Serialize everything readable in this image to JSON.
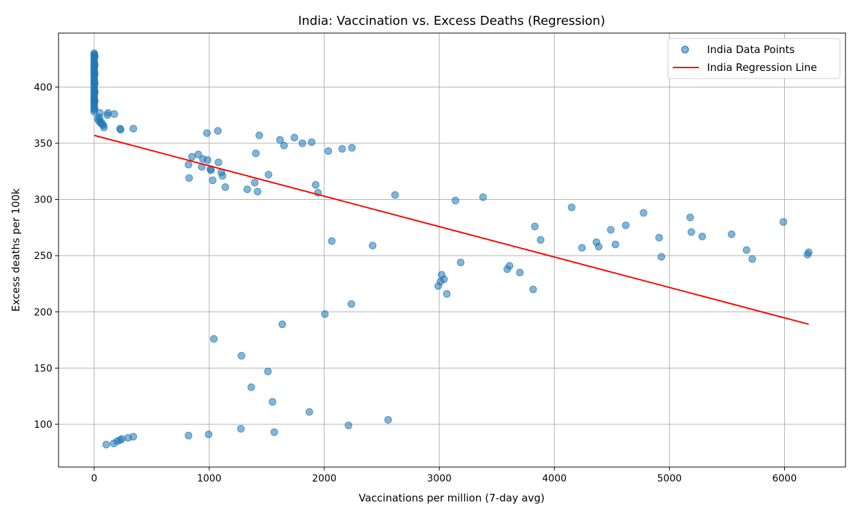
{
  "chart_data": {
    "type": "scatter",
    "title": "India: Vaccination vs. Excess Deaths (Regression)",
    "xlabel": "Vaccinations per million (7-day avg)",
    "ylabel": "Excess deaths per 100k",
    "xlim": [
      -310,
      6530
    ],
    "ylim": [
      62,
      448
    ],
    "xticks": [
      0,
      1000,
      2000,
      3000,
      4000,
      5000,
      6000
    ],
    "xtick_labels": [
      "0",
      "1000",
      "2000",
      "3000",
      "4000",
      "5000",
      "6000"
    ],
    "yticks": [
      100,
      150,
      200,
      250,
      300,
      350,
      400
    ],
    "ytick_labels": [
      "100",
      "150",
      "200",
      "250",
      "300",
      "350",
      "400"
    ],
    "grid": true,
    "legend_position": "top-right",
    "colors": {
      "points": "#1f77b4",
      "line": "#ff0000"
    },
    "series": [
      {
        "name": "India Data Points",
        "kind": "scatter",
        "points": [
          [
            0,
            430
          ],
          [
            0,
            428
          ],
          [
            0,
            426
          ],
          [
            0,
            424
          ],
          [
            0,
            422
          ],
          [
            0,
            420
          ],
          [
            0,
            418
          ],
          [
            0,
            416
          ],
          [
            0,
            414
          ],
          [
            0,
            412
          ],
          [
            0,
            410
          ],
          [
            0,
            408
          ],
          [
            0,
            406
          ],
          [
            0,
            404
          ],
          [
            0,
            402
          ],
          [
            0,
            400
          ],
          [
            0,
            398
          ],
          [
            0,
            396
          ],
          [
            0,
            394
          ],
          [
            0,
            392
          ],
          [
            0,
            390
          ],
          [
            0,
            388
          ],
          [
            0,
            386
          ],
          [
            0,
            384
          ],
          [
            0,
            382
          ],
          [
            0,
            380
          ],
          [
            0,
            378
          ],
          [
            2,
            429
          ],
          [
            2,
            421
          ],
          [
            3,
            413
          ],
          [
            2,
            405
          ],
          [
            3,
            397
          ],
          [
            2,
            389
          ],
          [
            3,
            381
          ],
          [
            5,
            427
          ],
          [
            5,
            419
          ],
          [
            5,
            411
          ],
          [
            5,
            403
          ],
          [
            5,
            395
          ],
          [
            5,
            387
          ],
          [
            50,
            377
          ],
          [
            30,
            372
          ],
          [
            40,
            370
          ],
          [
            60,
            369
          ],
          [
            45,
            373
          ],
          [
            70,
            367
          ],
          [
            80,
            366
          ],
          [
            85,
            364
          ],
          [
            55,
            368
          ],
          [
            120,
            377
          ],
          [
            115,
            375
          ],
          [
            175,
            376
          ],
          [
            225,
            363
          ],
          [
            230,
            362
          ],
          [
            340,
            363
          ],
          [
            980,
            359
          ],
          [
            1075,
            361
          ],
          [
            1435,
            357
          ],
          [
            1615,
            353
          ],
          [
            1650,
            348
          ],
          [
            1740,
            355
          ],
          [
            1810,
            350
          ],
          [
            1890,
            351
          ],
          [
            2035,
            343
          ],
          [
            2155,
            345
          ],
          [
            2240,
            346
          ],
          [
            1405,
            341
          ],
          [
            820,
            331
          ],
          [
            850,
            338
          ],
          [
            905,
            340
          ],
          [
            935,
            329
          ],
          [
            945,
            336
          ],
          [
            985,
            335
          ],
          [
            1010,
            327
          ],
          [
            1015,
            326
          ],
          [
            1030,
            317
          ],
          [
            1080,
            333
          ],
          [
            1105,
            324
          ],
          [
            1115,
            321
          ],
          [
            1140,
            311
          ],
          [
            1330,
            309
          ],
          [
            1395,
            315
          ],
          [
            1420,
            307
          ],
          [
            1515,
            322
          ],
          [
            825,
            319
          ],
          [
            1925,
            313
          ],
          [
            1945,
            306
          ],
          [
            2615,
            304
          ],
          [
            3140,
            299
          ],
          [
            3380,
            302
          ],
          [
            2065,
            263
          ],
          [
            2420,
            259
          ],
          [
            3020,
            233
          ],
          [
            3040,
            229
          ],
          [
            3010,
            227
          ],
          [
            2990,
            223
          ],
          [
            3065,
            216
          ],
          [
            3185,
            244
          ],
          [
            3590,
            238
          ],
          [
            3610,
            241
          ],
          [
            3700,
            235
          ],
          [
            3815,
            220
          ],
          [
            3830,
            276
          ],
          [
            3880,
            264
          ],
          [
            4150,
            293
          ],
          [
            4240,
            257
          ],
          [
            4365,
            262
          ],
          [
            4385,
            258
          ],
          [
            4490,
            273
          ],
          [
            4530,
            260
          ],
          [
            4620,
            277
          ],
          [
            4775,
            288
          ],
          [
            4910,
            266
          ],
          [
            4930,
            249
          ],
          [
            5180,
            284
          ],
          [
            5190,
            271
          ],
          [
            5285,
            267
          ],
          [
            5540,
            269
          ],
          [
            5670,
            255
          ],
          [
            5720,
            247
          ],
          [
            5990,
            280
          ],
          [
            6200,
            251
          ],
          [
            6210,
            253
          ],
          [
            2235,
            207
          ],
          [
            2005,
            198
          ],
          [
            1635,
            189
          ],
          [
            1040,
            176
          ],
          [
            1280,
            161
          ],
          [
            1510,
            147
          ],
          [
            1365,
            133
          ],
          [
            1550,
            120
          ],
          [
            1870,
            111
          ],
          [
            2555,
            104
          ],
          [
            2210,
            99
          ],
          [
            1275,
            96
          ],
          [
            1565,
            93
          ],
          [
            995,
            91
          ],
          [
            820,
            90
          ],
          [
            340,
            89
          ],
          [
            295,
            88
          ],
          [
            240,
            87
          ],
          [
            225,
            86
          ],
          [
            200,
            85
          ],
          [
            170,
            83
          ],
          [
            105,
            82
          ]
        ]
      },
      {
        "name": "India Regression Line",
        "kind": "line",
        "points": [
          [
            0,
            357
          ],
          [
            6210,
            189
          ]
        ]
      }
    ]
  }
}
